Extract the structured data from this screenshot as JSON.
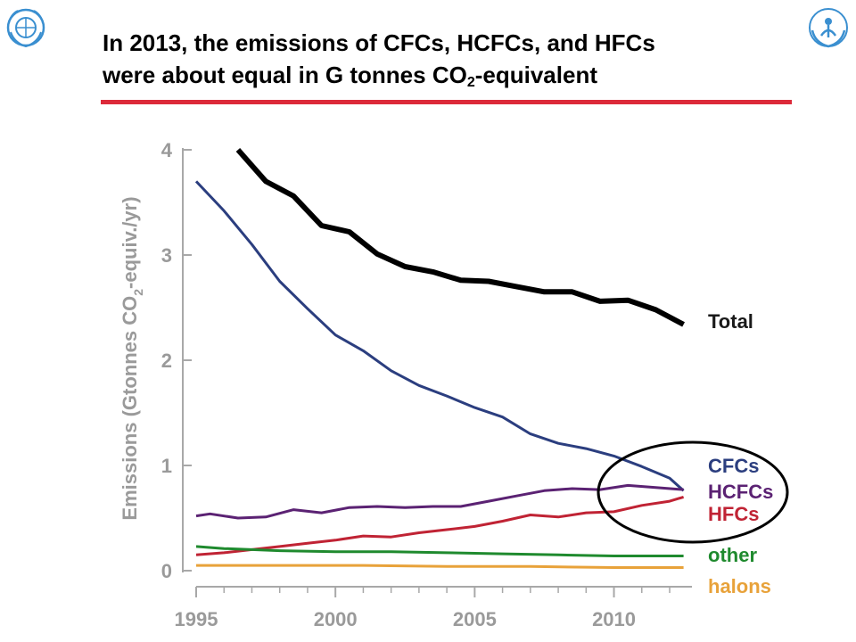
{
  "title": {
    "line1": "In 2013, the emissions of CFCs, HCFCs, and HFCs",
    "line2_prefix": "were about equal in G tonnes CO",
    "line2_sub": "2",
    "line2_suffix": "-equivalent"
  },
  "logos": {
    "left": {
      "icon": "wmo-emblem-icon",
      "color": "#3a8fd0"
    },
    "right": {
      "icon": "unep-emblem-icon",
      "color": "#3a8fd0"
    }
  },
  "colors": {
    "accent_rule": "#dc2a3a",
    "highlight_ellipse": "#000000"
  },
  "chart_data": {
    "type": "line",
    "xlabel": "",
    "ylabel": "Emissions (Gtonnes CO₂-equiv./yr)",
    "ylabel_prefix": "Emissions (Gtonnes CO",
    "ylabel_sub": "2",
    "ylabel_suffix": "-equiv./yr)",
    "xlim": [
      1995,
      2012.8
    ],
    "ylim": [
      0,
      4
    ],
    "x_ticks": [
      1995,
      2000,
      2005,
      2010
    ],
    "y_ticks": [
      0,
      1,
      2,
      3,
      4
    ],
    "grid": false,
    "legend": "direct labels at line ends (right)",
    "annotation": "ellipse highlighting CFCs, HCFCs, HFCs around 2010-2013",
    "series": [
      {
        "name": "Total",
        "color": "#000000",
        "width": 6,
        "x": [
          1996.5,
          1997.5,
          1998.5,
          1999.5,
          2000.5,
          2001.5,
          2002.5,
          2003.5,
          2004.5,
          2005.5,
          2006.5,
          2007.5,
          2008.5,
          2009.5,
          2010.5,
          2011.5,
          2012.5
        ],
        "values": [
          4.0,
          3.7,
          3.56,
          3.28,
          3.22,
          3.01,
          2.89,
          2.84,
          2.76,
          2.75,
          2.7,
          2.65,
          2.65,
          2.56,
          2.57,
          2.48,
          2.34
        ]
      },
      {
        "name": "CFCs",
        "color": "#2b3e7f",
        "width": 3,
        "x": [
          1995,
          1996,
          1997,
          1998,
          1999,
          2000,
          2001,
          2002,
          2003,
          2004,
          2005,
          2006,
          2007,
          2008,
          2009,
          2010,
          2011,
          2012,
          2012.5
        ],
        "values": [
          3.7,
          3.42,
          3.1,
          2.75,
          2.49,
          2.24,
          2.09,
          1.9,
          1.76,
          1.66,
          1.55,
          1.46,
          1.3,
          1.21,
          1.16,
          1.09,
          0.99,
          0.88,
          0.76
        ]
      },
      {
        "name": "HCFCs",
        "color": "#5b2273",
        "width": 3,
        "x": [
          1995,
          1995.5,
          1996.5,
          1997.5,
          1998.5,
          1999.5,
          2000.5,
          2001.5,
          2002.5,
          2003.5,
          2004.5,
          2005.5,
          2006.5,
          2007.5,
          2008.5,
          2009.5,
          2010.5,
          2011.5,
          2012.5
        ],
        "values": [
          0.52,
          0.54,
          0.5,
          0.51,
          0.58,
          0.55,
          0.6,
          0.61,
          0.6,
          0.61,
          0.61,
          0.66,
          0.71,
          0.76,
          0.78,
          0.77,
          0.81,
          0.79,
          0.77
        ]
      },
      {
        "name": "HFCs",
        "color": "#c02334",
        "width": 3,
        "x": [
          1995,
          1996,
          1997,
          1998,
          1999,
          2000,
          2001,
          2002,
          2003,
          2004,
          2005,
          2006,
          2007,
          2008,
          2009,
          2010,
          2011,
          2012,
          2012.5
        ],
        "values": [
          0.15,
          0.17,
          0.2,
          0.23,
          0.26,
          0.29,
          0.33,
          0.32,
          0.36,
          0.39,
          0.42,
          0.47,
          0.53,
          0.51,
          0.55,
          0.56,
          0.62,
          0.66,
          0.7
        ]
      },
      {
        "name": "other",
        "color": "#1f8a2e",
        "width": 3,
        "x": [
          1995,
          1996,
          1998,
          2000,
          2002,
          2004,
          2006,
          2008,
          2010,
          2012,
          2012.5
        ],
        "values": [
          0.23,
          0.21,
          0.19,
          0.18,
          0.18,
          0.17,
          0.16,
          0.15,
          0.14,
          0.14,
          0.14
        ]
      },
      {
        "name": "halons",
        "color": "#e8a23a",
        "width": 3,
        "x": [
          1995,
          1998,
          2001,
          2004,
          2007,
          2010,
          2012.5
        ],
        "values": [
          0.05,
          0.05,
          0.05,
          0.04,
          0.04,
          0.03,
          0.03
        ]
      }
    ],
    "labels": [
      {
        "text": "Total",
        "color": "#1a1a1a"
      },
      {
        "text": "CFCs",
        "color": "#2b3e7f"
      },
      {
        "text": "HCFCs",
        "color": "#5b2273"
      },
      {
        "text": "HFCs",
        "color": "#c02334"
      },
      {
        "text": "other",
        "color": "#1f8a2e"
      },
      {
        "text": "halons",
        "color": "#e8a23a"
      }
    ]
  }
}
